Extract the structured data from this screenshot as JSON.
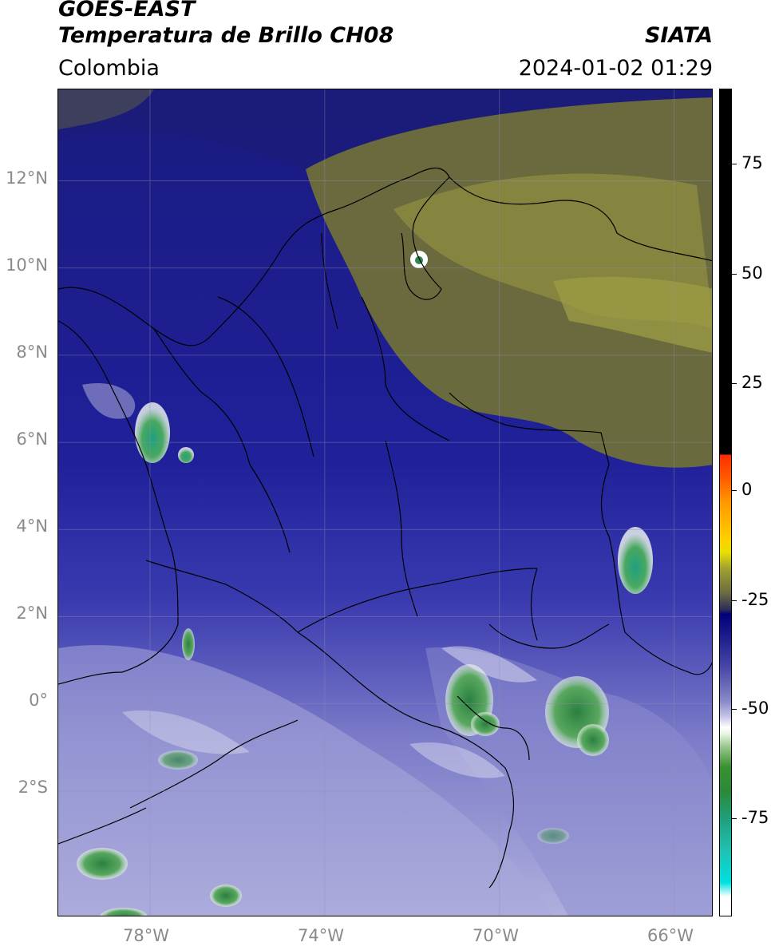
{
  "header": {
    "satellite": "GOES-EAST",
    "product": "Temperatura de Brillo CH08",
    "region": "Colombia",
    "source": "SIATA",
    "datetime": "2024-01-02 01:29"
  },
  "map": {
    "lat_range": [
      -4.9,
      14.1
    ],
    "lon_range": [
      -80.1,
      -65.1
    ],
    "lat_labels": [
      "12°N",
      "10°N",
      "8°N",
      "6°N",
      "4°N",
      "2°N",
      "0°",
      "2°S"
    ],
    "lat_values": [
      12,
      10,
      8,
      6,
      4,
      2,
      0,
      -2
    ],
    "lon_labels": [
      "78°W",
      "74°W",
      "70°W",
      "66°W"
    ],
    "lon_values": [
      -78,
      -74,
      -70,
      -66
    ]
  },
  "colorbar": {
    "labels": [
      "75",
      "50",
      "25",
      "0",
      "-25",
      "-50",
      "-75"
    ],
    "values": [
      75,
      50,
      25,
      0,
      -25,
      -50,
      -75
    ],
    "colors": {
      "warm_black": "#000000",
      "red": "#ff2a00",
      "orange": "#ff9900",
      "yellow": "#e8e000",
      "olive": "#8a8a2a",
      "navy": "#00007a",
      "blue": "#3a3aa0",
      "lavender": "#b8b8e0",
      "white": "#ffffff",
      "green": "#2e8a2a",
      "teal": "#20b090",
      "cyan": "#00e0e0"
    }
  }
}
